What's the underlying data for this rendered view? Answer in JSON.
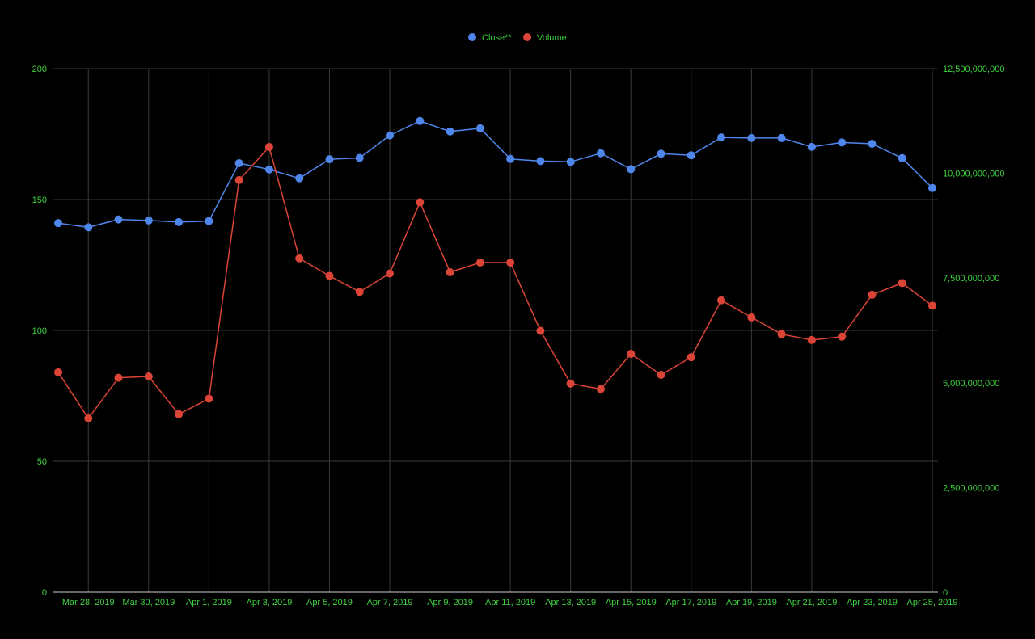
{
  "legend": {
    "close_label": "Close**",
    "volume_label": "Volume"
  },
  "colors": {
    "background": "#000000",
    "grid": "#3a3a3a",
    "axis_text": "#3fd23f",
    "close": "#4f86ec",
    "volume": "#db4437"
  },
  "chart_data": {
    "type": "line",
    "x": [
      "2019-03-27",
      "2019-03-28",
      "2019-03-29",
      "2019-03-30",
      "2019-03-31",
      "2019-04-01",
      "2019-04-02",
      "2019-04-03",
      "2019-04-04",
      "2019-04-05",
      "2019-04-06",
      "2019-04-07",
      "2019-04-08",
      "2019-04-09",
      "2019-04-10",
      "2019-04-11",
      "2019-04-12",
      "2019-04-13",
      "2019-04-14",
      "2019-04-15",
      "2019-04-16",
      "2019-04-17",
      "2019-04-18",
      "2019-04-19",
      "2019-04-20",
      "2019-04-21",
      "2019-04-22",
      "2019-04-23",
      "2019-04-24",
      "2019-04-25"
    ],
    "x_tick_labels": [
      {
        "date": "2019-03-28",
        "label": "Mar 28, 2019"
      },
      {
        "date": "2019-03-30",
        "label": "Mar 30, 2019"
      },
      {
        "date": "2019-04-01",
        "label": "Apr 1, 2019"
      },
      {
        "date": "2019-04-03",
        "label": "Apr 3, 2019"
      },
      {
        "date": "2019-04-05",
        "label": "Apr 5, 2019"
      },
      {
        "date": "2019-04-07",
        "label": "Apr 7, 2019"
      },
      {
        "date": "2019-04-09",
        "label": "Apr 9, 2019"
      },
      {
        "date": "2019-04-11",
        "label": "Apr 11, 2019"
      },
      {
        "date": "2019-04-13",
        "label": "Apr 13, 2019"
      },
      {
        "date": "2019-04-15",
        "label": "Apr 15, 2019"
      },
      {
        "date": "2019-04-17",
        "label": "Apr 17, 2019"
      },
      {
        "date": "2019-04-19",
        "label": "Apr 19, 2019"
      },
      {
        "date": "2019-04-21",
        "label": "Apr 21, 2019"
      },
      {
        "date": "2019-04-23",
        "label": "Apr 23, 2019"
      },
      {
        "date": "2019-04-25",
        "label": "Apr 25, 2019"
      }
    ],
    "series": [
      {
        "name": "Close**",
        "axis": "left",
        "values": [
          141.0,
          139.4,
          142.4,
          142.0,
          141.4,
          141.8,
          163.9,
          161.5,
          158.1,
          165.4,
          165.9,
          174.5,
          180.0,
          176.0,
          177.2,
          165.5,
          164.7,
          164.4,
          167.7,
          161.6,
          167.5,
          166.9,
          173.7,
          173.5,
          173.5,
          170.1,
          171.8,
          171.3,
          165.8,
          154.4
        ]
      },
      {
        "name": "Volume",
        "axis": "right",
        "values": [
          5250000000,
          4150000000,
          5120000000,
          5150000000,
          4250000000,
          4620000000,
          9840000000,
          10630000000,
          7970000000,
          7550000000,
          7170000000,
          7610000000,
          9310000000,
          7640000000,
          7870000000,
          7870000000,
          6240000000,
          4980000000,
          4850000000,
          5690000000,
          5190000000,
          5610000000,
          6970000000,
          6560000000,
          6160000000,
          6020000000,
          6100000000,
          7100000000,
          7380000000,
          6840000000
        ]
      }
    ],
    "y_left": {
      "min": 0,
      "max": 200,
      "ticks": [
        0,
        50,
        100,
        150,
        200
      ],
      "tick_labels": [
        "0",
        "50",
        "100",
        "150",
        "200"
      ]
    },
    "y_right": {
      "min": 0,
      "max": 12500000000,
      "ticks": [
        0,
        2500000000,
        5000000000,
        7500000000,
        10000000000,
        12500000000
      ],
      "tick_labels": [
        "0",
        "2,500,000,000",
        "5,000,000,000",
        "7,500,000,000",
        "10,000,000,000",
        "12,500,000,000"
      ]
    },
    "grid": true,
    "legend_position": "top-center"
  }
}
